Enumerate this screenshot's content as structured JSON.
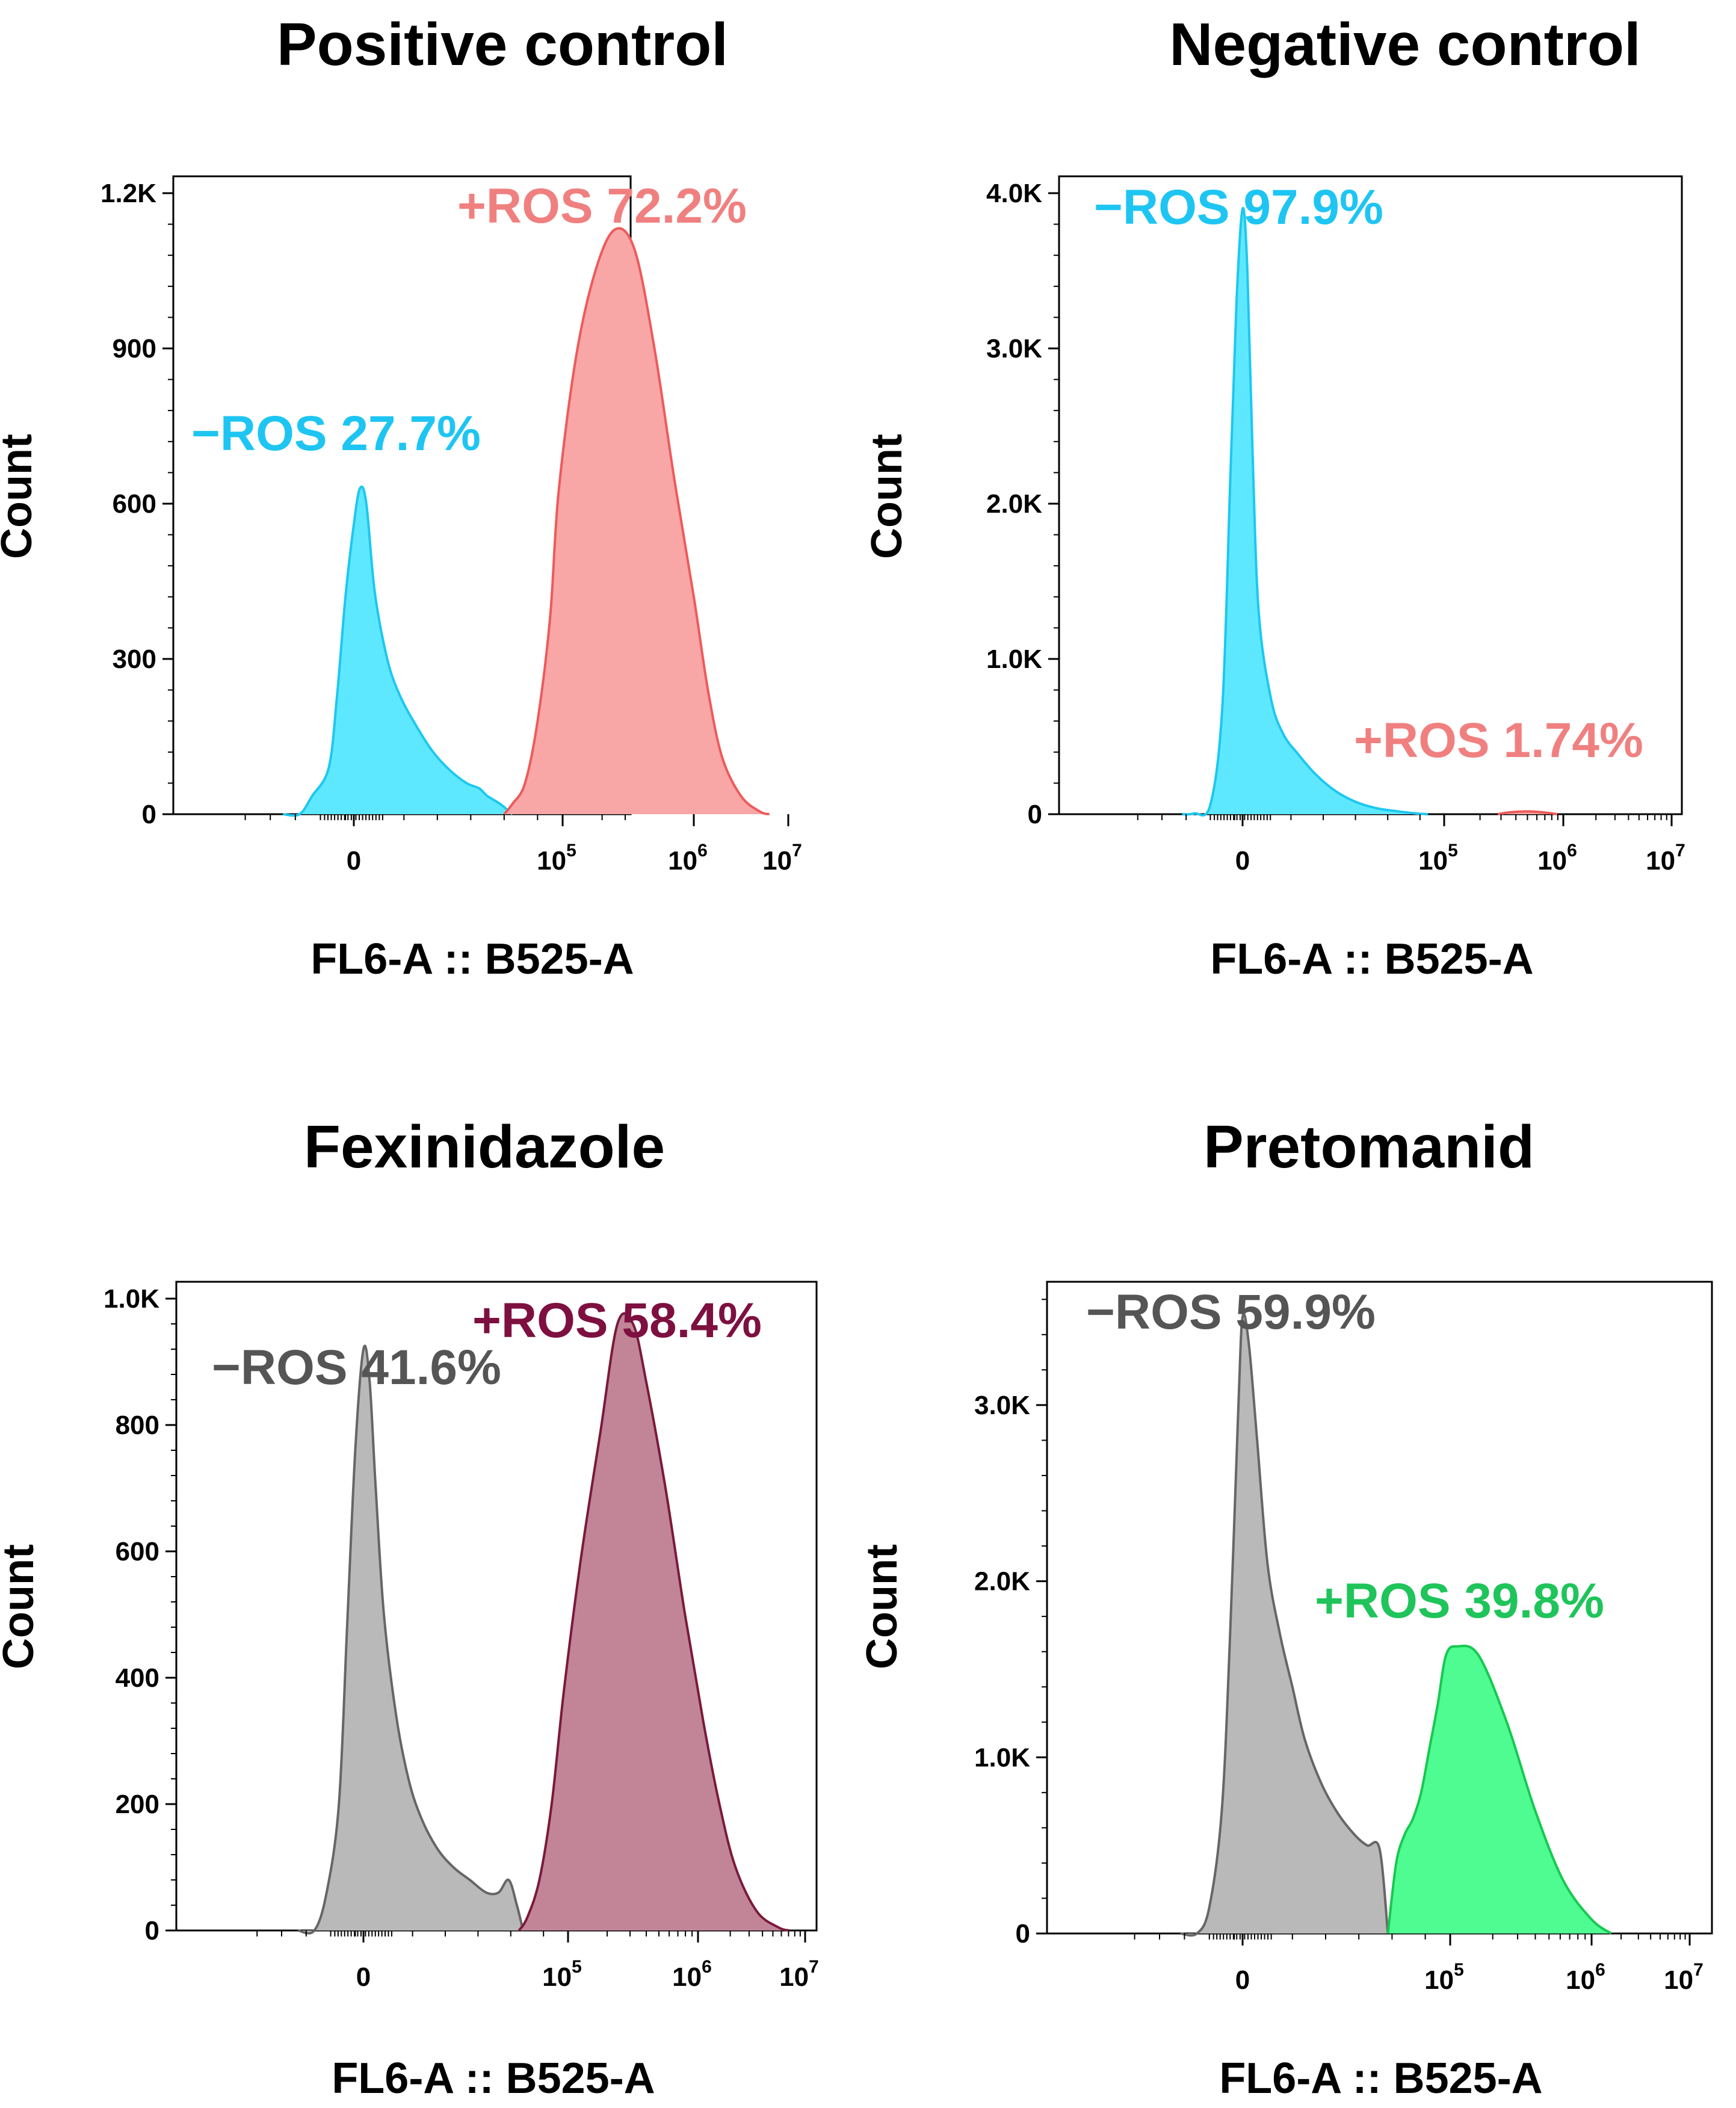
{
  "chart_data": [
    {
      "type": "area",
      "title": "Positive control",
      "xlabel": "FL6-A :: B525-A",
      "ylabel": "Count",
      "ylim": [
        0,
        1200
      ],
      "yticks": [
        {
          "value": 0,
          "label": "0"
        },
        {
          "value": 300,
          "label": "300"
        },
        {
          "value": 600,
          "label": "600"
        },
        {
          "value": 900,
          "label": "900"
        },
        {
          "value": 1200,
          "label": "1.2K"
        }
      ],
      "xticks": [
        {
          "value": 0,
          "label": "0",
          "exp": ""
        },
        {
          "value": 5,
          "label": "10",
          "exp": "5"
        },
        {
          "value": 6,
          "label": "10",
          "exp": "6"
        },
        {
          "value": 7,
          "label": "10",
          "exp": "7"
        }
      ],
      "xscale": "biexponential",
      "series": [
        {
          "name": "−ROS",
          "percent": "27.7%",
          "label": "−ROS 27.7%",
          "fill": "#5ee8ff",
          "stroke": "#1cc8f0",
          "label_color": "#1ec5f2",
          "x": [
            -1.7,
            -1.3,
            -1.0,
            -0.6,
            -0.4,
            -0.2,
            0.0,
            0.15,
            0.3,
            0.5,
            0.8,
            1.1,
            1.5,
            1.9,
            2.3,
            2.7,
            3.0,
            3.2,
            3.5,
            3.8
          ],
          "y": [
            0,
            0,
            35,
            90,
            230,
            420,
            560,
            630,
            600,
            430,
            300,
            230,
            170,
            120,
            85,
            60,
            50,
            35,
            20,
            0
          ]
        },
        {
          "name": "+ROS",
          "percent": "72.2%",
          "label": "+ROS 72.2%",
          "fill": "#f8a6a6",
          "stroke": "#ee5a5a",
          "label_color": "#f08080",
          "x": [
            3.6,
            3.8,
            4.1,
            4.4,
            4.7,
            4.9,
            5.1,
            5.25,
            5.4,
            5.55,
            5.7,
            5.85,
            6.0,
            6.15,
            6.3,
            6.5,
            6.7,
            6.8
          ],
          "y": [
            0,
            20,
            60,
            180,
            380,
            620,
            880,
            1050,
            1130,
            1090,
            900,
            650,
            420,
            240,
            110,
            35,
            5,
            0
          ]
        }
      ]
    },
    {
      "type": "area",
      "title": "Negative control",
      "xlabel": "FL6-A :: B525-A",
      "ylabel": "Count",
      "ylim": [
        0,
        4000
      ],
      "yticks": [
        {
          "value": 0,
          "label": "0"
        },
        {
          "value": 1000,
          "label": "1.0K"
        },
        {
          "value": 2000,
          "label": "2.0K"
        },
        {
          "value": 3000,
          "label": "3.0K"
        },
        {
          "value": 4000,
          "label": "4.0K"
        }
      ],
      "xticks": [
        {
          "value": 0,
          "label": "0",
          "exp": ""
        },
        {
          "value": 5,
          "label": "10",
          "exp": "5"
        },
        {
          "value": 6,
          "label": "10",
          "exp": "6"
        },
        {
          "value": 7,
          "label": "10",
          "exp": "7"
        }
      ],
      "xscale": "biexponential",
      "series": [
        {
          "name": "−ROS",
          "percent": "97.9%",
          "label": "−ROS 97.9%",
          "fill": "#5ee8ff",
          "stroke": "#1cc8f0",
          "label_color": "#1ec5f2",
          "x": [
            -1.5,
            -1.2,
            -0.8,
            -0.5,
            -0.3,
            -0.15,
            0.0,
            0.12,
            0.25,
            0.4,
            0.7,
            1.0,
            1.4,
            1.8,
            2.3,
            2.8,
            3.3,
            3.8,
            4.3,
            4.6
          ],
          "y": [
            0,
            5,
            60,
            700,
            2200,
            3300,
            3900,
            3500,
            2300,
            1300,
            750,
            520,
            380,
            260,
            150,
            80,
            40,
            20,
            5,
            0
          ]
        },
        {
          "name": "+ROS",
          "percent": "1.74%",
          "label": "+ROS 1.74%",
          "fill": "#f8a6a6",
          "stroke": "#ee5a5a",
          "label_color": "#f08080",
          "x": [
            5.45,
            5.55,
            5.7,
            5.85,
            5.95
          ],
          "y": [
            0,
            12,
            18,
            10,
            0
          ]
        }
      ]
    },
    {
      "type": "area",
      "title": "Fexinidazole",
      "xlabel": "FL6-A :: B525-A",
      "ylabel": "Count",
      "ylim": [
        0,
        1000
      ],
      "yticks": [
        {
          "value": 0,
          "label": "0"
        },
        {
          "value": 200,
          "label": "200"
        },
        {
          "value": 400,
          "label": "400"
        },
        {
          "value": 600,
          "label": "600"
        },
        {
          "value": 800,
          "label": "800"
        },
        {
          "value": 1000,
          "label": "1.0K"
        }
      ],
      "xticks": [
        {
          "value": 0,
          "label": "0",
          "exp": ""
        },
        {
          "value": 5,
          "label": "10",
          "exp": "5"
        },
        {
          "value": 6,
          "label": "10",
          "exp": "6"
        },
        {
          "value": 7,
          "label": "10",
          "exp": "7"
        }
      ],
      "xscale": "biexponential",
      "series": [
        {
          "name": "−ROS",
          "percent": "41.6%",
          "label": "−ROS 41.6%",
          "fill": "#b9b9b9",
          "stroke": "#666666",
          "label_color": "#555555",
          "x": [
            -1.6,
            -1.2,
            -0.9,
            -0.6,
            -0.4,
            -0.2,
            0.0,
            0.15,
            0.3,
            0.5,
            0.8,
            1.1,
            1.4,
            1.8,
            2.2,
            2.6,
            3.0,
            3.3,
            3.55,
            3.75,
            3.9
          ],
          "y": [
            0,
            0,
            60,
            200,
            480,
            760,
            920,
            870,
            700,
            500,
            340,
            240,
            180,
            130,
            100,
            80,
            60,
            60,
            80,
            40,
            0
          ]
        },
        {
          "name": "+ROS",
          "percent": "58.4%",
          "label": "+ROS 58.4%",
          "fill": "#c28597",
          "stroke": "#7a1a3a",
          "label_color": "#7d1040",
          "x": [
            3.8,
            4.0,
            4.3,
            4.6,
            4.9,
            5.1,
            5.25,
            5.38,
            5.5,
            5.6,
            5.75,
            5.9,
            6.05,
            6.2,
            6.35,
            6.55,
            6.75,
            6.85
          ],
          "y": [
            0,
            20,
            80,
            200,
            380,
            590,
            790,
            960,
            960,
            870,
            700,
            500,
            330,
            200,
            100,
            30,
            5,
            0
          ]
        }
      ]
    },
    {
      "type": "area",
      "title": "Pretomanid",
      "xlabel": "FL6-A :: B525-A",
      "ylabel": "Count",
      "ylim": [
        0,
        3700
      ],
      "yticks": [
        {
          "value": 0,
          "label": "0"
        },
        {
          "value": 1000,
          "label": "1.0K"
        },
        {
          "value": 2000,
          "label": "2.0K"
        },
        {
          "value": 3000,
          "label": "3.0K"
        }
      ],
      "xticks": [
        {
          "value": 0,
          "label": "0",
          "exp": ""
        },
        {
          "value": 5,
          "label": "10",
          "exp": "5"
        },
        {
          "value": 6,
          "label": "10",
          "exp": "6"
        },
        {
          "value": 7,
          "label": "10",
          "exp": "7"
        }
      ],
      "xscale": "biexponential",
      "series": [
        {
          "name": "−ROS",
          "percent": "59.9%",
          "label": "−ROS 59.9%",
          "fill": "#b9b9b9",
          "stroke": "#666666",
          "label_color": "#555555",
          "x": [
            -1.5,
            -1.1,
            -0.8,
            -0.5,
            -0.3,
            -0.1,
            0.0,
            0.15,
            0.35,
            0.6,
            0.9,
            1.2,
            1.5,
            1.9,
            2.3,
            2.7,
            3.0,
            3.3,
            3.5
          ],
          "y": [
            0,
            0,
            150,
            700,
            1700,
            3000,
            3500,
            3350,
            2800,
            2100,
            1700,
            1400,
            1100,
            850,
            680,
            560,
            500,
            480,
            0
          ]
        },
        {
          "name": "+ROS",
          "percent": "39.8%",
          "label": "+ROS 39.8%",
          "fill": "#4efc92",
          "stroke": "#16c94f",
          "label_color": "#1fc45a",
          "x": [
            3.5,
            3.7,
            3.9,
            4.1,
            4.3,
            4.5,
            4.7,
            4.9,
            5.05,
            5.2,
            5.4,
            5.6,
            5.8,
            6.0,
            6.2
          ],
          "y": [
            0,
            400,
            560,
            650,
            800,
            1050,
            1300,
            1580,
            1630,
            1580,
            1200,
            700,
            300,
            80,
            0
          ]
        }
      ]
    }
  ]
}
